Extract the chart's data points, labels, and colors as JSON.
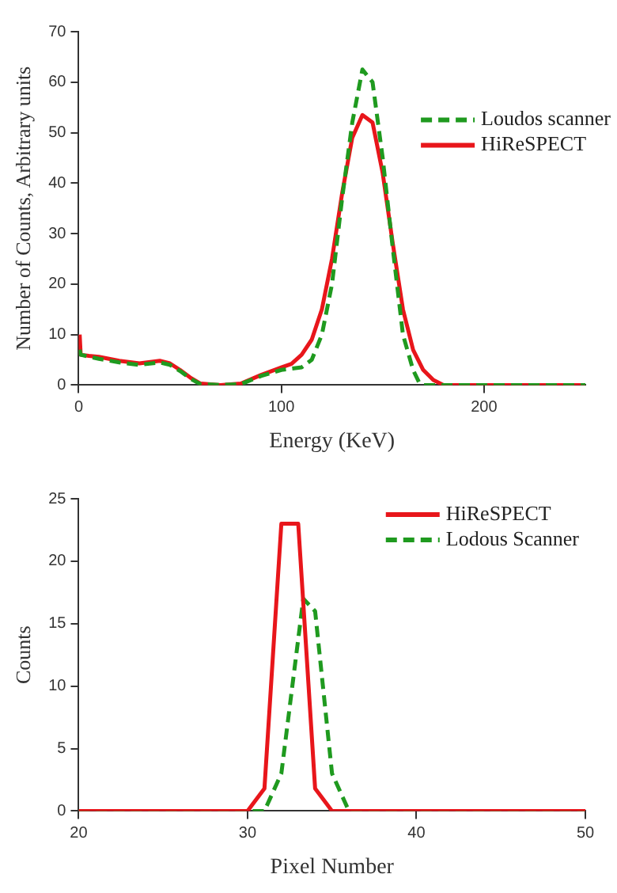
{
  "chart_data": [
    {
      "type": "line",
      "xlabel": "Energy (KeV)",
      "ylabel": "Number of Counts, Arbitrary units",
      "xlim": [
        0,
        250
      ],
      "xticks": [
        0,
        100,
        200
      ],
      "ylim": [
        0,
        70
      ],
      "yticks": [
        0,
        10,
        20,
        30,
        40,
        50,
        60,
        70
      ],
      "grid": false,
      "legend": "right",
      "marker": "none",
      "series": [
        {
          "name": "Loudos scanner",
          "color": "#1f9a1f",
          "line_style": "dashed",
          "x": [
            0.5,
            1,
            10,
            20,
            30,
            40,
            45,
            50,
            55,
            60,
            70,
            80,
            90,
            100,
            110,
            115,
            120,
            125,
            130,
            135,
            140,
            145,
            150,
            155,
            160,
            165,
            168,
            170,
            250
          ],
          "values": [
            7,
            6,
            5.2,
            4.5,
            4,
            4.5,
            4,
            2.8,
            1.3,
            0.2,
            0,
            0.2,
            1.8,
            3,
            3.5,
            5,
            10,
            20,
            37,
            52,
            62.5,
            60,
            45,
            27,
            10,
            3,
            0.5,
            0,
            0
          ]
        },
        {
          "name": "HiReSPECT",
          "color": "#e8161b",
          "line_style": "solid",
          "x": [
            0.5,
            1,
            5,
            10,
            20,
            30,
            40,
            45,
            50,
            55,
            60,
            70,
            80,
            90,
            100,
            105,
            110,
            115,
            120,
            125,
            130,
            135,
            140,
            145,
            150,
            155,
            160,
            165,
            170,
            175,
            180,
            250
          ],
          "values": [
            10,
            6,
            5.8,
            5.6,
            4.8,
            4.3,
            4.8,
            4.3,
            3,
            1.5,
            0.3,
            0,
            0.3,
            2,
            3.5,
            4.2,
            6,
            9,
            15,
            25,
            38,
            49,
            53.5,
            52,
            42,
            28,
            15,
            7,
            3,
            1,
            0,
            0
          ]
        }
      ]
    },
    {
      "type": "line",
      "xlabel": "Pixel Number",
      "ylabel": "Counts",
      "xlim": [
        20,
        50
      ],
      "xticks": [
        20,
        30,
        40,
        50
      ],
      "ylim": [
        0,
        25
      ],
      "yticks": [
        0,
        5,
        10,
        15,
        20,
        25
      ],
      "grid": false,
      "legend": "top right",
      "marker": "none",
      "series": [
        {
          "name": "HiReSPECT",
          "color": "#e8161b",
          "line_style": "solid",
          "x": [
            20,
            30,
            31,
            32,
            33,
            34,
            35,
            50
          ],
          "values": [
            0,
            0,
            1.8,
            23,
            23,
            1.8,
            0,
            0
          ]
        },
        {
          "name": "Lodous Scanner",
          "color": "#1f9a1f",
          "line_style": "dashed",
          "x": [
            20,
            31,
            32,
            33.3,
            34,
            35,
            36,
            50
          ],
          "values": [
            0,
            0,
            3,
            17,
            16,
            3,
            0,
            0
          ]
        }
      ]
    }
  ]
}
